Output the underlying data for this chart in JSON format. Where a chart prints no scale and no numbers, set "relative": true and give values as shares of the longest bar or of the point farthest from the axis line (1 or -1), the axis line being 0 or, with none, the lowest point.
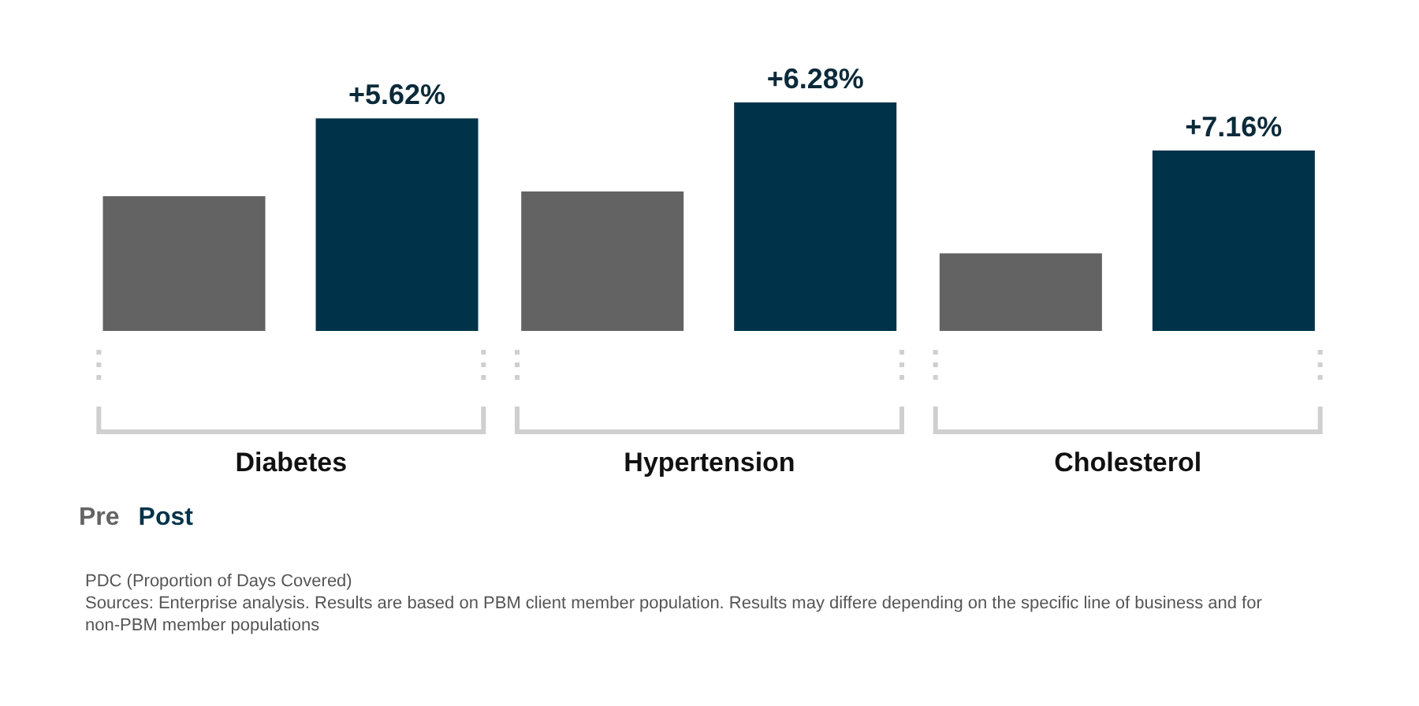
{
  "chart_data": {
    "type": "bar",
    "relative": true,
    "categories": [
      "Diabetes",
      "Hypertension",
      "Cholesterol"
    ],
    "series": [
      {
        "name": "Pre",
        "color": "#636363",
        "values": [
          0.59,
          0.61,
          0.34
        ]
      },
      {
        "name": "Post",
        "color": "#003349",
        "values": [
          0.93,
          1,
          0.79
        ]
      }
    ],
    "legend": "bottom left",
    "grid": false,
    "annotations": [
      "+5.62%",
      "+6.28%",
      "+7.16%",
      "PDC (Proportion of Days Covered)",
      "Sources: Enterprise analysis. Results are based on PBM client member population. Results may differe depending on the specific line of business and for non-PBM member populations"
    ]
  }
}
